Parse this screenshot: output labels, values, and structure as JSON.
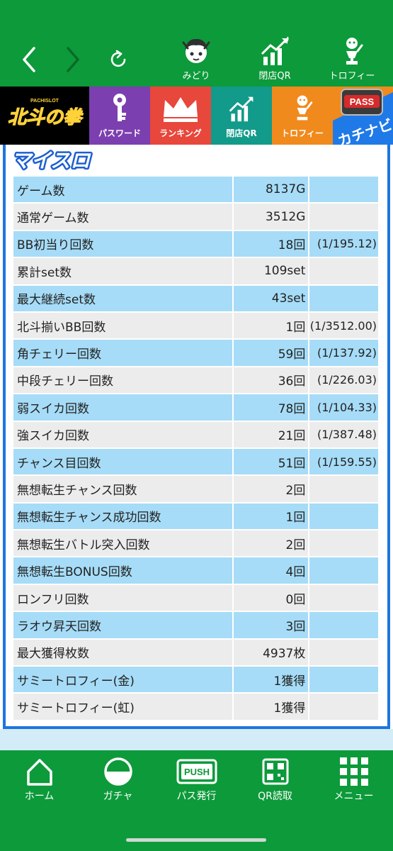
{
  "top_nav": {
    "apps": [
      {
        "label": "みどり",
        "icon": "character-face-icon"
      },
      {
        "label": "閉店QR",
        "icon": "chart-up-icon"
      },
      {
        "label": "トロフィー",
        "icon": "trophy-figure-icon"
      }
    ]
  },
  "banners": [
    {
      "label": "北斗の拳",
      "sub": "PACHISLOT"
    },
    {
      "label": "パスワード",
      "icon": "key-icon"
    },
    {
      "label": "ランキング",
      "icon": "crown-icon"
    },
    {
      "label": "閉店QR",
      "icon": "chart-up-icon"
    },
    {
      "label": "トロフィー",
      "icon": "trophy-figure-icon"
    },
    {
      "label": "カチナビ",
      "badge": "PASS"
    }
  ],
  "content": {
    "logo": "マイスロ",
    "rows": [
      {
        "label": "ゲーム数",
        "value": "8137G",
        "ratio": ""
      },
      {
        "label": "通常ゲーム数",
        "value": "3512G",
        "ratio": ""
      },
      {
        "label": "BB初当り回数",
        "value": "18回",
        "ratio": "(1/195.12)"
      },
      {
        "label": "累計set数",
        "value": "109set",
        "ratio": ""
      },
      {
        "label": "最大継続set数",
        "value": "43set",
        "ratio": ""
      },
      {
        "label": "北斗揃いBB回数",
        "value": "1回",
        "ratio": "(1/3512.00)"
      },
      {
        "label": "角チェリー回数",
        "value": "59回",
        "ratio": "(1/137.92)"
      },
      {
        "label": "中段チェリー回数",
        "value": "36回",
        "ratio": "(1/226.03)"
      },
      {
        "label": "弱スイカ回数",
        "value": "78回",
        "ratio": "(1/104.33)"
      },
      {
        "label": "強スイカ回数",
        "value": "21回",
        "ratio": "(1/387.48)"
      },
      {
        "label": "チャンス目回数",
        "value": "51回",
        "ratio": "(1/159.55)"
      },
      {
        "label": "無想転生チャンス回数",
        "value": "2回",
        "ratio": ""
      },
      {
        "label": "無想転生チャンス成功回数",
        "value": "1回",
        "ratio": ""
      },
      {
        "label": "無想転生バトル突入回数",
        "value": "2回",
        "ratio": ""
      },
      {
        "label": "無想転生BONUS回数",
        "value": "4回",
        "ratio": ""
      },
      {
        "label": "ロンフリ回数",
        "value": "0回",
        "ratio": ""
      },
      {
        "label": "ラオウ昇天回数",
        "value": "3回",
        "ratio": ""
      },
      {
        "label": "最大獲得枚数",
        "value": "4937枚",
        "ratio": ""
      },
      {
        "label": "サミートロフィー(金)",
        "value": "1獲得",
        "ratio": ""
      },
      {
        "label": "サミートロフィー(虹)",
        "value": "1獲得",
        "ratio": ""
      }
    ]
  },
  "bottom_nav": [
    {
      "label": "ホーム",
      "icon": "home-icon"
    },
    {
      "label": "ガチャ",
      "icon": "gacha-icon"
    },
    {
      "label": "パス発行",
      "icon": "push-pass-icon",
      "badge": "PUSH"
    },
    {
      "label": "QR読取",
      "icon": "qr-code-icon"
    },
    {
      "label": "メニュー",
      "icon": "grid-menu-icon"
    }
  ],
  "colors": {
    "header_green": "#0d9a3a",
    "row_blue": "#a6dcf7",
    "row_gray": "#ececec",
    "frame_blue": "#1d75e0"
  }
}
